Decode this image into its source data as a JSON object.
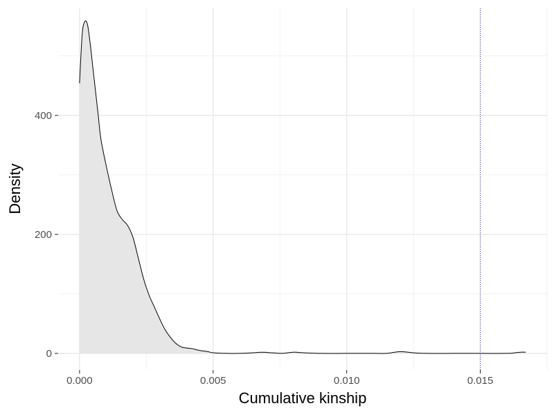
{
  "chart_data": {
    "type": "area",
    "title": "",
    "xlabel": "Cumulative kinship",
    "ylabel": "Density",
    "xlim": [
      -0.0008,
      0.0175
    ],
    "ylim": [
      -28,
      580
    ],
    "x_ticks": [
      0.0,
      0.005,
      0.01,
      0.015
    ],
    "x_tick_labels": [
      "0.000",
      "0.005",
      "0.010",
      "0.015"
    ],
    "x_minor_ticks": [
      0.0025,
      0.0075,
      0.0125,
      0.0175
    ],
    "y_ticks": [
      0,
      200,
      400
    ],
    "y_tick_labels": [
      "0",
      "200",
      "400"
    ],
    "y_minor_ticks": [
      100,
      300,
      500
    ],
    "grid": true,
    "reference_line": {
      "x": 0.015,
      "color": "#3333ff",
      "style": "dotted"
    },
    "colors": {
      "fill": "#e6e6e6",
      "line": "#000000",
      "panel": "#ffffff",
      "grid": "#ebebeb"
    },
    "series": [
      {
        "x": [
          0.0,
          0.0001,
          0.0002,
          0.0003,
          0.0004,
          0.0005,
          0.0006,
          0.0007,
          0.0008,
          0.001,
          0.0012,
          0.0014,
          0.0016,
          0.0018,
          0.002,
          0.0022,
          0.0024,
          0.0026,
          0.0028,
          0.003,
          0.0032,
          0.0034,
          0.0036,
          0.0038,
          0.004,
          0.0042,
          0.0045,
          0.0048,
          0.005,
          0.0055,
          0.006,
          0.0065,
          0.0068,
          0.0072,
          0.0076,
          0.008,
          0.0084,
          0.009,
          0.01,
          0.011,
          0.0115,
          0.012,
          0.0125,
          0.013,
          0.014,
          0.015,
          0.016,
          0.0163,
          0.0165,
          0.0167
        ],
        "y": [
          454,
          537,
          558,
          552,
          520,
          480,
          440,
          400,
          360,
          315,
          275,
          240,
          225,
          215,
          195,
          160,
          125,
          98,
          78,
          58,
          40,
          27,
          17,
          11,
          9,
          8,
          5,
          3,
          1,
          0,
          0,
          1,
          2,
          1,
          0,
          2,
          1,
          0,
          0,
          0,
          0,
          3,
          1,
          0,
          0,
          0,
          0,
          1,
          2,
          2
        ]
      }
    ]
  }
}
